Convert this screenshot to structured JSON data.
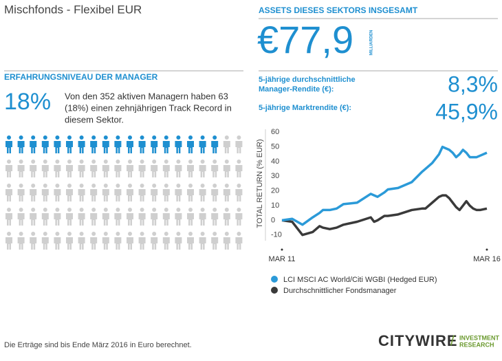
{
  "header": {
    "title": "Mischfonds - Flexibel EUR"
  },
  "assets": {
    "heading": "ASSETS DIESES SEKTORS INSGESAMT",
    "amount": "€77,9",
    "unit": "MILLIARDEN"
  },
  "manager": {
    "heading": "ERFAHRUNGSNIVEAU DER MANAGER",
    "percent": 18,
    "percent_label": "18%",
    "text_lines": [
      "Von den 352 aktiven Managern haben 63",
      "(18%) einen zehnjährigen Track Record in",
      "diesem Sektor."
    ]
  },
  "returns": [
    {
      "label_lines": [
        "5-jährige durchschnittliche",
        "Manager-Rendite (€):"
      ],
      "value": "8,3%"
    },
    {
      "label_lines": [
        "5-jährige Marktrendite (€):"
      ],
      "value": "45,9%"
    }
  ],
  "chart_data": {
    "type": "line",
    "ylabel": "TOTAL RETURN (% EUR)",
    "x": [
      0,
      3,
      6,
      9,
      11,
      12,
      14,
      16,
      18,
      22,
      26,
      27,
      28,
      30,
      31,
      34,
      38,
      41,
      42,
      44,
      46,
      47,
      48,
      49,
      50,
      51,
      52,
      53,
      54,
      55,
      56,
      57,
      58,
      60
    ],
    "series": [
      {
        "name": "LCI MSCI AC World/Citi WGBI (Hedged EUR)",
        "color": "#2b9ad8",
        "values": [
          0,
          1,
          -3,
          2,
          5,
          7,
          7,
          8,
          11,
          12,
          18,
          17,
          16,
          19,
          21,
          22,
          26,
          33,
          35,
          39,
          45,
          50,
          49,
          48,
          46,
          43,
          45,
          48,
          46,
          43,
          43,
          43,
          44,
          46
        ]
      },
      {
        "name": "Durchschnittlicher Fondsmanager",
        "color": "#3a3a3a",
        "values": [
          0,
          -1,
          -10,
          -8,
          -4,
          -5,
          -6,
          -5,
          -3,
          -1,
          2,
          -1,
          0,
          3,
          3,
          4,
          7,
          8,
          8,
          12,
          16,
          17,
          17,
          15,
          12,
          9,
          7,
          10,
          13,
          10,
          8,
          7,
          7,
          8
        ]
      }
    ],
    "xlim": [
      0,
      60
    ],
    "xticks": [
      {
        "value": 0,
        "label": "MAR 11"
      },
      {
        "value": 60,
        "label": "MAR 16"
      }
    ],
    "ylim": [
      -12,
      62
    ],
    "yticks": [
      60,
      50,
      40,
      30,
      20,
      10,
      0,
      -10
    ]
  },
  "footer": {
    "note": "Die Erträge sind bis Ende März 2016 in Euro berechnet.",
    "logo": "CITYWIRE",
    "logo_sub_lines": [
      "INVESTMENT",
      "RESEARCH"
    ]
  }
}
